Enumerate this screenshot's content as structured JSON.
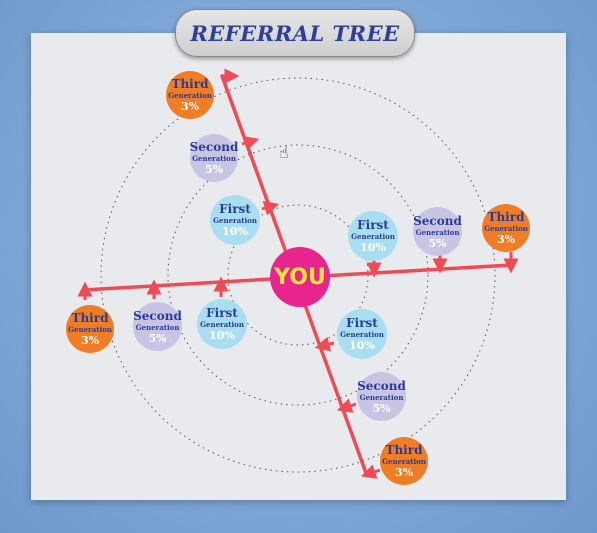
{
  "title": "REFERRAL TREE",
  "center_label": "YOU",
  "generation_word": "Generation",
  "nodes": [
    {
      "gen": "Third",
      "pct": "3%"
    },
    {
      "gen": "Second",
      "pct": "5%"
    },
    {
      "gen": "First",
      "pct": "10%"
    },
    {
      "gen": "First",
      "pct": "10%"
    },
    {
      "gen": "Second",
      "pct": "5%"
    },
    {
      "gen": "Third",
      "pct": "3%"
    },
    {
      "gen": "Third",
      "pct": "3%"
    },
    {
      "gen": "Second",
      "pct": "5%"
    },
    {
      "gen": "First",
      "pct": "10%"
    },
    {
      "gen": "First",
      "pct": "10%"
    },
    {
      "gen": "Second",
      "pct": "5%"
    },
    {
      "gen": "Third",
      "pct": "3%"
    }
  ],
  "colors": {
    "first": "#a9def0",
    "second": "#c8c5e4",
    "third": "#ef7d25",
    "center": "#e8258e",
    "line": "#f04a57",
    "title_text": "#2e3f9c"
  },
  "icons": {
    "cursor": "hand-pointer-icon"
  }
}
